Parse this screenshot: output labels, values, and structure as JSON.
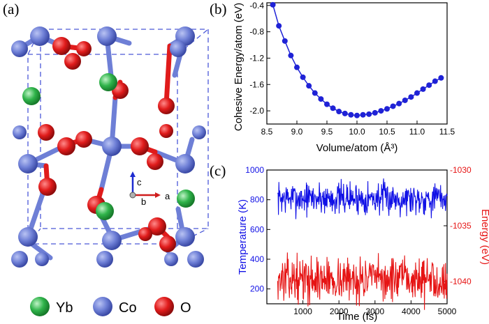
{
  "panels": {
    "a": {
      "label": "(a)"
    },
    "b": {
      "label": "(b)"
    },
    "c": {
      "label": "(c)"
    }
  },
  "structure": {
    "axes": {
      "c": "c",
      "b": "b",
      "a": "a"
    },
    "legend": [
      {
        "name": "Yb",
        "color": "#2fb34a"
      },
      {
        "name": "Co",
        "color": "#6e7fd6"
      },
      {
        "name": "O",
        "color": "#e01b1b"
      }
    ]
  },
  "chart_data": [
    {
      "type": "line",
      "panel": "b",
      "title": "",
      "xlabel": "Volume/atom (Å³)",
      "ylabel": "Cohesive Energy/atom (eV)",
      "xlim": [
        8.5,
        11.5
      ],
      "ylim": [
        -2.2,
        -0.36
      ],
      "xticks": [
        "8.5",
        "9.0",
        "9.5",
        "10.0",
        "10.5",
        "11.0",
        "11.5"
      ],
      "yticks": [
        "-0.4",
        "-0.8",
        "-1.2",
        "-1.6",
        "-2.0"
      ],
      "color": "#1f22d6",
      "x": [
        8.6,
        8.7,
        8.8,
        8.9,
        9.0,
        9.1,
        9.2,
        9.3,
        9.4,
        9.5,
        9.6,
        9.7,
        9.8,
        9.9,
        10.0,
        10.1,
        10.2,
        10.3,
        10.4,
        10.5,
        10.6,
        10.7,
        10.8,
        10.9,
        11.0,
        11.1,
        11.2,
        11.3,
        11.4
      ],
      "y": [
        -0.39,
        -0.71,
        -0.94,
        -1.16,
        -1.34,
        -1.49,
        -1.62,
        -1.73,
        -1.82,
        -1.9,
        -1.96,
        -2.01,
        -2.04,
        -2.06,
        -2.07,
        -2.06,
        -2.05,
        -2.03,
        -2.0,
        -1.97,
        -1.93,
        -1.89,
        -1.84,
        -1.79,
        -1.73,
        -1.67,
        -1.61,
        -1.55,
        -1.5
      ]
    },
    {
      "type": "line",
      "panel": "c",
      "title": "",
      "xlabel": "Time (fs)",
      "ylabel": "Temperature (K)",
      "y2label": "Energy (eV)",
      "xlim": [
        0,
        5000
      ],
      "ylim": [
        100,
        1000
      ],
      "y2lim": [
        -1042,
        -1030
      ],
      "xticks": [
        "1000",
        "2000",
        "3000",
        "4000",
        "5000"
      ],
      "yticks": [
        "1000",
        "800",
        "600",
        "400",
        "200"
      ],
      "y2ticks": [
        "-1030",
        "-1035",
        "-1040"
      ],
      "series": [
        {
          "axis": "left",
          "color": "#1010e6",
          "mean": 810,
          "spread": 55,
          "seed": 7,
          "n": 420
        },
        {
          "axis": "right",
          "color": "#e61414",
          "mean": -1039.8,
          "spread": 0.95,
          "seed": 13,
          "n": 420
        }
      ]
    }
  ]
}
